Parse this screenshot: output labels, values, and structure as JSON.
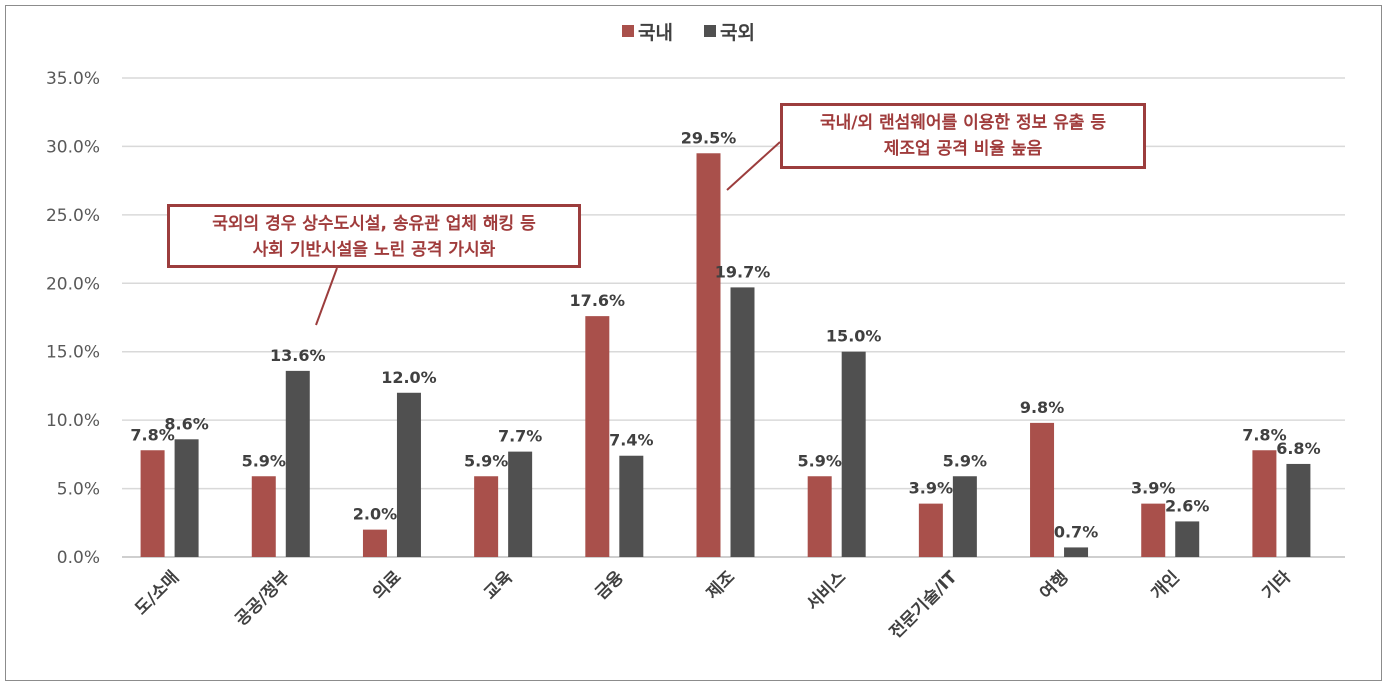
{
  "chart_data": {
    "type": "bar",
    "title": "",
    "xlabel": "",
    "ylabel": "",
    "categories": [
      "도/소매",
      "공공/정부",
      "의료",
      "교육",
      "금융",
      "제조",
      "서비스",
      "전문기술/IT",
      "여행",
      "개인",
      "기타"
    ],
    "series": [
      {
        "name": "국내",
        "color": "#a9504b",
        "values": [
          7.8,
          5.9,
          2.0,
          5.9,
          17.6,
          29.5,
          5.9,
          3.9,
          9.8,
          3.9,
          7.8
        ]
      },
      {
        "name": "국외",
        "color": "#505050",
        "values": [
          8.6,
          13.6,
          12.0,
          7.7,
          7.4,
          19.7,
          15.0,
          5.9,
          0.7,
          2.6,
          6.8
        ]
      }
    ],
    "ylim": [
      0,
      35
    ],
    "yticks": [
      "0.0%",
      "5.0%",
      "10.0%",
      "15.0%",
      "20.0%",
      "25.0%",
      "30.0%",
      "35.0%"
    ],
    "grid": true,
    "legend_position": "top",
    "annotations": [
      {
        "lines": [
          "국외의 경우 상수도시설, 송유관 업체 해킹 등",
          "사회 기반시설을 노린 공격 가시화"
        ],
        "points_to": "공공/정부"
      },
      {
        "lines": [
          "국내/외 랜섬웨어를 이용한 정보 유출 등",
          "제조업 공격 비율 높음"
        ],
        "points_to": "제조"
      }
    ]
  }
}
